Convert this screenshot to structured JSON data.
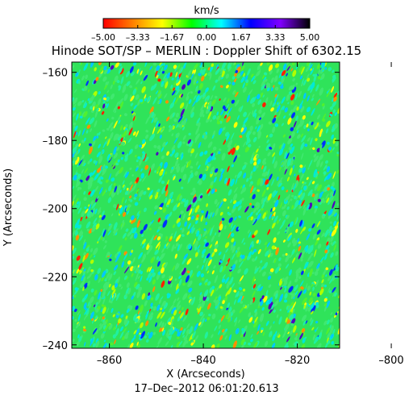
{
  "chart_data": {
    "type": "heatmap",
    "title": "Hinode SOT/SP – MERLIN : Doppler Shift of 6302.15",
    "xlabel": "X (Arcseconds)",
    "ylabel": "Y (Arcseconds)",
    "footer": "17–Dec–2012 06:01:20.613",
    "xlim": [
      -868,
      -811
    ],
    "ylim": [
      -241,
      -157
    ],
    "xticks": [
      -860,
      -840,
      -820,
      -800
    ],
    "xtick_labels": [
      "–860",
      "–840",
      "–820",
      "–800"
    ],
    "yticks": [
      -160,
      -180,
      -200,
      -220,
      -240
    ],
    "ytick_labels": [
      "–160",
      "–180",
      "–200",
      "–220",
      "–240"
    ],
    "colorbar": {
      "unit": "km/s",
      "min": -5.0,
      "max": 5.0,
      "ticks": [
        -5.0,
        -3.33,
        -1.67,
        0.0,
        1.67,
        3.33,
        5.0
      ],
      "tick_labels": [
        "–5.00",
        "–3.33",
        "–1.67",
        "0.00",
        "1.67",
        "3.33",
        "5.00"
      ],
      "colors": [
        "#ff0000",
        "#ff8000",
        "#ffff00",
        "#00ff00",
        "#00ffff",
        "#0000ff",
        "#8000ff",
        "#000000"
      ]
    },
    "field": {
      "background": "#2fe35a",
      "dominant_value_range": [
        -1.5,
        1.5
      ],
      "description": "Mostly near-zero Doppler velocities (green/cyan) with scattered red/yellow and blue/purple speckles"
    }
  }
}
